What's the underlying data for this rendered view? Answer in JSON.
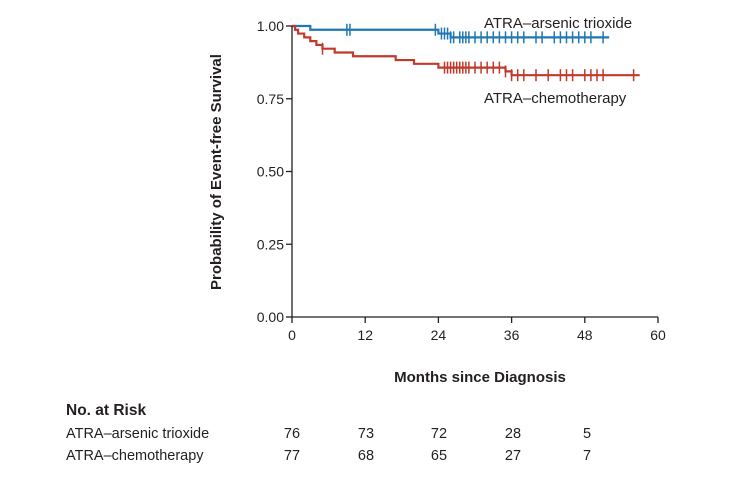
{
  "chart_data": {
    "type": "line",
    "subtype": "kaplan-meier step plot",
    "xlabel": "Months since Diagnosis",
    "ylabel": "Probability of Event-free Survival",
    "xlim": [
      0,
      60
    ],
    "ylim": [
      0,
      1
    ],
    "xticks": [
      "0",
      "12",
      "24",
      "36",
      "48",
      "60"
    ],
    "xtick_values": [
      0,
      12,
      24,
      36,
      48,
      60
    ],
    "yticks": [
      "0.00",
      "0.25",
      "0.50",
      "0.75",
      "1.00"
    ],
    "ytick_values": [
      0,
      0.25,
      0.5,
      0.75,
      1.0
    ],
    "grid": false,
    "series": [
      {
        "name": "ATRA–arsenic trioxide",
        "color": "#1f78b4",
        "steps": [
          [
            0,
            1.0
          ],
          [
            3,
            0.987
          ],
          [
            24,
            0.974
          ],
          [
            26,
            0.961
          ],
          [
            30,
            0.961
          ],
          [
            52,
            0.961
          ]
        ],
        "censor_times": [
          9,
          9.5,
          23.5,
          24.5,
          25,
          25.5,
          26,
          26.5,
          27.5,
          28,
          28.5,
          29,
          30,
          31,
          32,
          33,
          34,
          35,
          36,
          37,
          38,
          40,
          41,
          43,
          44,
          45,
          46,
          47,
          48,
          49,
          51
        ]
      },
      {
        "name": "ATRA–chemotherapy",
        "color": "#c1392b",
        "steps": [
          [
            0,
            1.0
          ],
          [
            0.5,
            0.987
          ],
          [
            1,
            0.974
          ],
          [
            2,
            0.961
          ],
          [
            3,
            0.948
          ],
          [
            4,
            0.935
          ],
          [
            5,
            0.922
          ],
          [
            7,
            0.909
          ],
          [
            10,
            0.896
          ],
          [
            17,
            0.883
          ],
          [
            20,
            0.87
          ],
          [
            24,
            0.857
          ],
          [
            35,
            0.844
          ],
          [
            36,
            0.831
          ],
          [
            37,
            0.831
          ],
          [
            57,
            0.831
          ]
        ],
        "censor_times": [
          5,
          25,
          25.5,
          26,
          26.5,
          27,
          27.5,
          28,
          28.5,
          29,
          30,
          31,
          32,
          33,
          34,
          35,
          36,
          37,
          38,
          40,
          42,
          44,
          45,
          46,
          48,
          49,
          50,
          51,
          56
        ]
      }
    ]
  },
  "risk_table": {
    "title": "No. at Risk",
    "times": [
      0,
      12,
      24,
      36,
      48
    ],
    "rows": [
      {
        "name": "ATRA–arsenic trioxide",
        "values": [
          "76",
          "73",
          "72",
          "28",
          "5"
        ]
      },
      {
        "name": "ATRA–chemotherapy",
        "values": [
          "77",
          "68",
          "65",
          "27",
          "7"
        ]
      }
    ]
  }
}
